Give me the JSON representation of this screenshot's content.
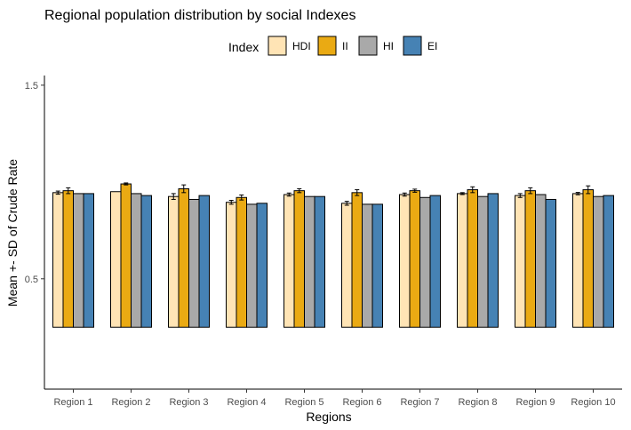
{
  "chart_data": {
    "type": "bar",
    "title": "Regional population distribution by social Indexes",
    "xlabel": "Regions",
    "ylabel": "Mean +- SD of Crude Rate",
    "legend_title": "Index",
    "legend_position": "top",
    "grid": false,
    "ylim": [
      -0.07,
      1.55
    ],
    "yticks": [
      0.5,
      1.5
    ],
    "ytick_labels": [
      "0.5",
      "1.5"
    ],
    "baseline": 0.25,
    "categories": [
      "Region 1",
      "Region 2",
      "Region 3",
      "Region 4",
      "Region 5",
      "Region 6",
      "Region 7",
      "Region 8",
      "Region 9",
      "Region 10"
    ],
    "series": [
      {
        "name": "HDI",
        "color": "#FFE4B5",
        "values": [
          0.945,
          0.95,
          0.925,
          0.895,
          0.935,
          0.89,
          0.935,
          0.94,
          0.93,
          0.94
        ],
        "errors": [
          0.008,
          0,
          0.015,
          0.01,
          0.008,
          0.01,
          0.008,
          0.005,
          0.01,
          0.006
        ]
      },
      {
        "name": "II",
        "color": "#EAAA13",
        "values": [
          0.955,
          0.99,
          0.965,
          0.92,
          0.955,
          0.945,
          0.955,
          0.96,
          0.955,
          0.96
        ],
        "errors": [
          0.015,
          0.005,
          0.02,
          0.013,
          0.01,
          0.015,
          0.008,
          0.015,
          0.015,
          0.02
        ]
      },
      {
        "name": "HI",
        "color": "#A9A9A9",
        "values": [
          0.94,
          0.94,
          0.91,
          0.885,
          0.925,
          0.885,
          0.92,
          0.925,
          0.935,
          0.925
        ]
      },
      {
        "name": "EI",
        "color": "#4682B4",
        "values": [
          0.94,
          0.93,
          0.93,
          0.89,
          0.925,
          0.885,
          0.93,
          0.94,
          0.91,
          0.93
        ]
      }
    ]
  }
}
